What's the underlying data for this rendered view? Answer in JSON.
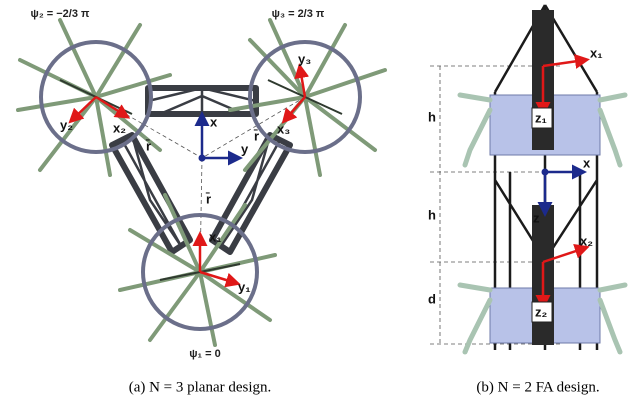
{
  "panel_a": {
    "labels": [
      "ψ₂ = −2/3 π",
      "ψ₃ = 2/3 π",
      "y₂",
      "x₂",
      "x",
      "y",
      "x₃",
      "y₃",
      "r̄",
      "r̄",
      "r̄",
      "x₁",
      "y₁",
      "ψ₁ = 0"
    ],
    "caption": "(a) N = 3 planar design."
  },
  "panel_b": {
    "labels": [
      "x₁",
      "h",
      "z₁",
      "x",
      "h",
      "z",
      "x₂",
      "d",
      "z₂"
    ],
    "caption": "(b) N = 2 FA design."
  }
}
